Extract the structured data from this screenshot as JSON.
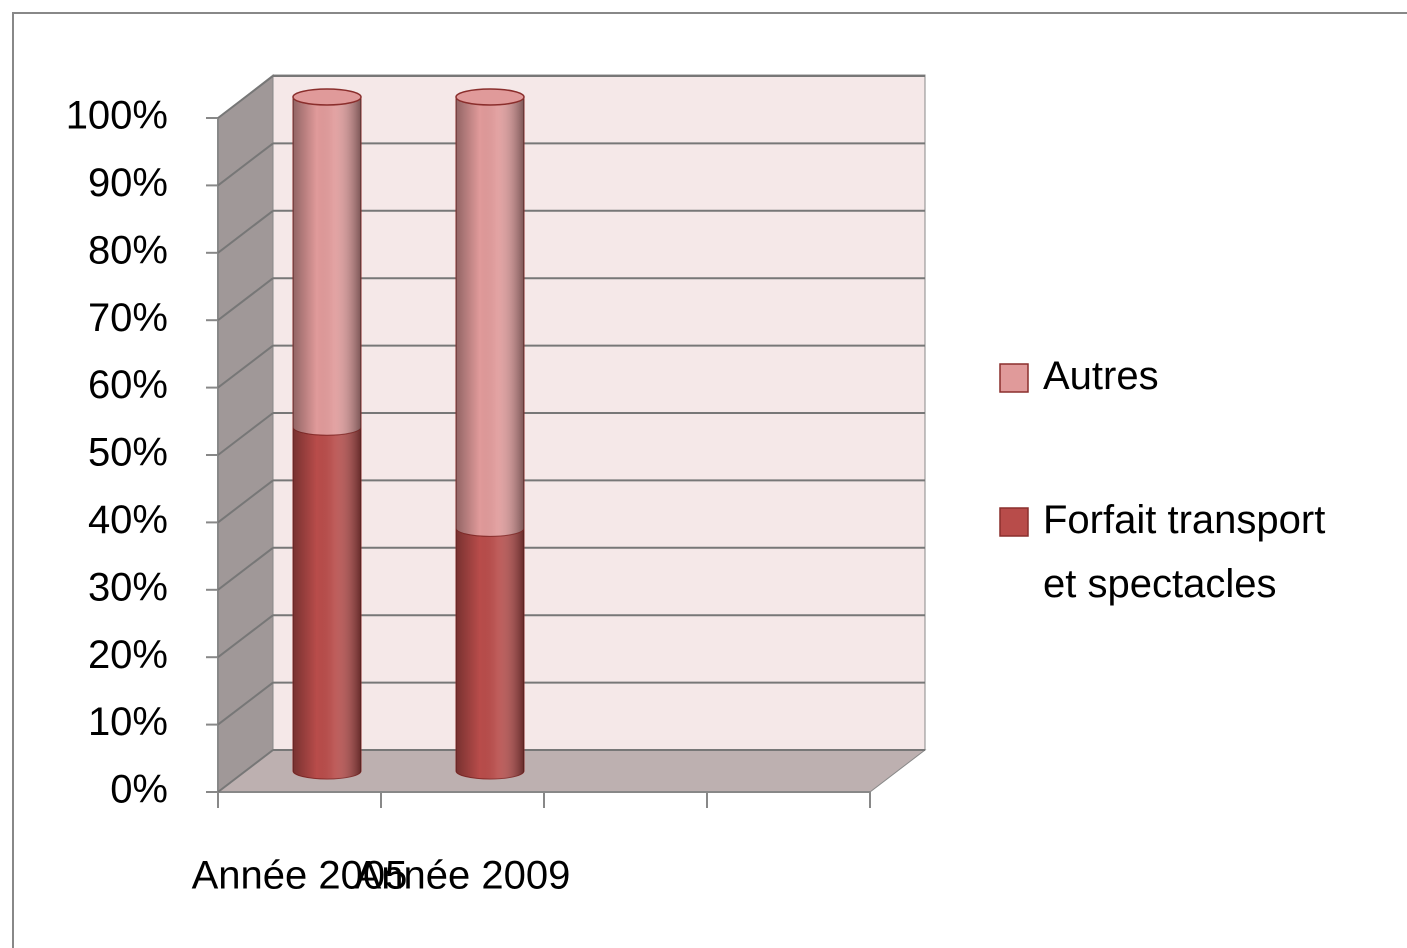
{
  "chart_data": {
    "type": "bar3d_stacked",
    "categories": [
      "Année 2005",
      "Année 2009"
    ],
    "series": [
      {
        "name": "Forfait transport et spectacles",
        "color": "#b84c4a",
        "values": [
          51,
          36
        ]
      },
      {
        "name": "Autres",
        "color": "#e09a9a",
        "values": [
          49,
          64
        ]
      }
    ],
    "ylim": [
      0,
      100
    ],
    "yticks": [
      {
        "value": 0,
        "label": "0%"
      },
      {
        "value": 10,
        "label": "10%"
      },
      {
        "value": 20,
        "label": "20%"
      },
      {
        "value": 30,
        "label": "30%"
      },
      {
        "value": 40,
        "label": "40%"
      },
      {
        "value": 50,
        "label": "50%"
      },
      {
        "value": 60,
        "label": "60%"
      },
      {
        "value": 70,
        "label": "70%"
      },
      {
        "value": 80,
        "label": "80%"
      },
      {
        "value": 90,
        "label": "90%"
      },
      {
        "value": 100,
        "label": "100%"
      }
    ],
    "grid": true,
    "legend": "right"
  }
}
